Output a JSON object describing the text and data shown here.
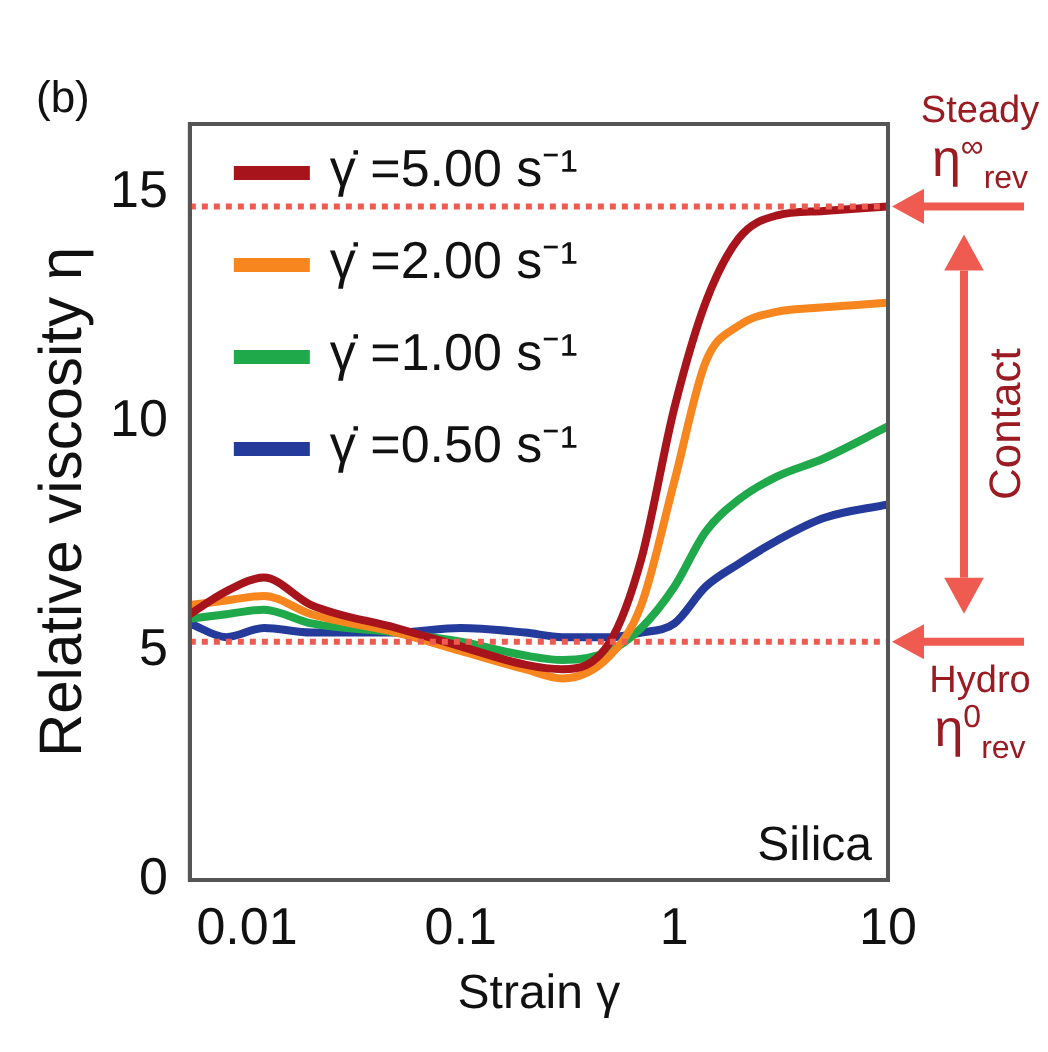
{
  "chart_data": {
    "type": "line",
    "xlabel": "Strain γ",
    "ylabel": "Relative viscosity η",
    "log": "x",
    "xlim": [
      0.0054,
      10
    ],
    "xticks": [
      0.01,
      0.1,
      1,
      10
    ],
    "ylim": [
      0,
      16.5
    ],
    "yticks": [
      0,
      5,
      10,
      15
    ],
    "grid": false,
    "legend": "top left",
    "marker": "none",
    "line_style": "solid",
    "annotations": [
      "(b)",
      "Silica",
      "Contact"
    ],
    "ref_lines": [
      {
        "axis": "y",
        "value": 14.7,
        "label": "Steady η$^{∞}$$_{rev}$",
        "color": "#ef5b50",
        "line_style": "dotted"
      },
      {
        "axis": "y",
        "value": 5.2,
        "label": "Hydro η$^{0}$$_{rev}$",
        "color": "#ef5b50",
        "line_style": "dotted"
      }
    ],
    "series": [
      {
        "name": "γ̇ =5.00 s⁻¹",
        "color": "#a8141c",
        "x": [
          0.0054,
          0.008,
          0.012,
          0.02,
          0.05,
          0.1,
          0.2,
          0.3,
          0.5,
          0.7,
          1,
          1.4,
          2,
          3,
          5,
          10
        ],
        "values": [
          5.8,
          6.3,
          6.6,
          6.0,
          5.5,
          5.1,
          4.7,
          4.6,
          5.2,
          7.0,
          10.3,
          12.6,
          14.0,
          14.5,
          14.6,
          14.7
        ]
      },
      {
        "name": "γ̇ =2.00 s⁻¹",
        "color": "#f7861e",
        "x": [
          0.0054,
          0.008,
          0.012,
          0.02,
          0.05,
          0.1,
          0.2,
          0.3,
          0.5,
          0.7,
          1,
          1.4,
          2,
          3,
          5,
          10
        ],
        "values": [
          6.0,
          6.1,
          6.2,
          5.8,
          5.4,
          5.0,
          4.6,
          4.4,
          4.9,
          6.0,
          8.7,
          11.3,
          12.1,
          12.4,
          12.5,
          12.6
        ]
      },
      {
        "name": "γ̇ =1.00 s⁻¹",
        "color": "#1fa94a",
        "x": [
          0.0054,
          0.008,
          0.012,
          0.02,
          0.05,
          0.1,
          0.2,
          0.3,
          0.5,
          0.7,
          1,
          1.4,
          2,
          3,
          5,
          10
        ],
        "values": [
          5.7,
          5.8,
          5.9,
          5.6,
          5.4,
          5.2,
          4.9,
          4.8,
          5.0,
          5.5,
          6.4,
          7.6,
          8.3,
          8.8,
          9.2,
          9.9
        ]
      },
      {
        "name": "γ̇ =0.50 s⁻¹",
        "color": "#253b9b",
        "x": [
          0.0054,
          0.008,
          0.012,
          0.02,
          0.05,
          0.1,
          0.2,
          0.3,
          0.5,
          0.7,
          1,
          1.4,
          2,
          3,
          5,
          10
        ],
        "values": [
          5.6,
          5.3,
          5.5,
          5.4,
          5.4,
          5.5,
          5.4,
          5.3,
          5.3,
          5.4,
          5.6,
          6.4,
          6.9,
          7.4,
          7.9,
          8.2
        ]
      }
    ]
  }
}
